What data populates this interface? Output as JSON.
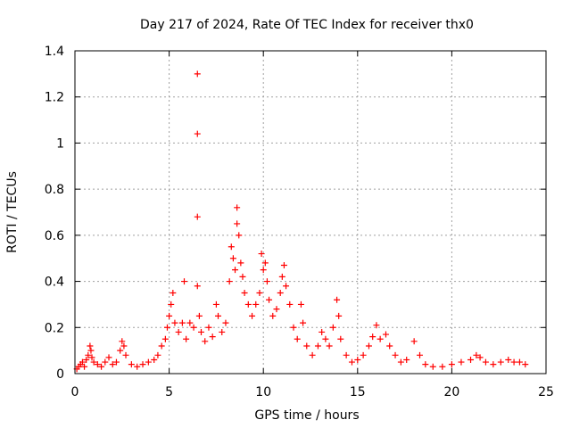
{
  "chart_data": {
    "type": "scatter",
    "title": "Day 217 of 2024, Rate Of TEC Index for receiver thx0",
    "xlabel": "GPS time / hours",
    "ylabel": "ROTI / TECUs",
    "xlim": [
      0,
      25
    ],
    "ylim": [
      0,
      1.4
    ],
    "xticks": [
      0,
      5,
      10,
      15,
      20,
      25
    ],
    "xtick_labels": [
      "0",
      "5",
      "10",
      "15",
      "20",
      "25"
    ],
    "yticks": [
      0,
      0.2,
      0.4,
      0.6,
      0.8,
      1,
      1.2,
      1.4
    ],
    "ytick_labels": [
      "0",
      "0.2",
      "0.4",
      "0.6",
      "0.8",
      "1",
      "1.2",
      "1.4"
    ],
    "grid": true,
    "marker": "plus",
    "color": "#ff0000",
    "series": [
      {
        "name": "ROTI",
        "points": [
          [
            0.1,
            0.02
          ],
          [
            0.2,
            0.03
          ],
          [
            0.3,
            0.04
          ],
          [
            0.4,
            0.05
          ],
          [
            0.5,
            0.03
          ],
          [
            0.6,
            0.06
          ],
          [
            0.7,
            0.08
          ],
          [
            0.8,
            0.12
          ],
          [
            0.85,
            0.1
          ],
          [
            0.9,
            0.07
          ],
          [
            1.0,
            0.05
          ],
          [
            1.2,
            0.04
          ],
          [
            1.4,
            0.03
          ],
          [
            1.6,
            0.05
          ],
          [
            1.8,
            0.07
          ],
          [
            2.0,
            0.04
          ],
          [
            2.2,
            0.05
          ],
          [
            2.4,
            0.1
          ],
          [
            2.5,
            0.14
          ],
          [
            2.6,
            0.12
          ],
          [
            2.7,
            0.08
          ],
          [
            3.0,
            0.04
          ],
          [
            3.3,
            0.03
          ],
          [
            3.6,
            0.04
          ],
          [
            3.9,
            0.05
          ],
          [
            4.2,
            0.06
          ],
          [
            4.4,
            0.08
          ],
          [
            4.6,
            0.12
          ],
          [
            4.8,
            0.15
          ],
          [
            4.9,
            0.2
          ],
          [
            5.0,
            0.25
          ],
          [
            5.1,
            0.3
          ],
          [
            5.2,
            0.35
          ],
          [
            5.3,
            0.22
          ],
          [
            5.5,
            0.18
          ],
          [
            5.7,
            0.22
          ],
          [
            5.8,
            0.4
          ],
          [
            5.9,
            0.15
          ],
          [
            6.1,
            0.22
          ],
          [
            6.3,
            0.2
          ],
          [
            6.5,
            0.68
          ],
          [
            6.5,
            1.04
          ],
          [
            6.5,
            1.3
          ],
          [
            6.5,
            0.38
          ],
          [
            6.6,
            0.25
          ],
          [
            6.7,
            0.18
          ],
          [
            6.9,
            0.14
          ],
          [
            7.1,
            0.2
          ],
          [
            7.3,
            0.16
          ],
          [
            7.5,
            0.3
          ],
          [
            7.6,
            0.25
          ],
          [
            7.8,
            0.18
          ],
          [
            8.0,
            0.22
          ],
          [
            8.2,
            0.4
          ],
          [
            8.3,
            0.55
          ],
          [
            8.4,
            0.5
          ],
          [
            8.5,
            0.45
          ],
          [
            8.6,
            0.72
          ],
          [
            8.6,
            0.65
          ],
          [
            8.7,
            0.6
          ],
          [
            8.8,
            0.48
          ],
          [
            8.9,
            0.42
          ],
          [
            9.0,
            0.35
          ],
          [
            9.2,
            0.3
          ],
          [
            9.4,
            0.25
          ],
          [
            9.6,
            0.3
          ],
          [
            9.8,
            0.35
          ],
          [
            9.9,
            0.52
          ],
          [
            10.0,
            0.45
          ],
          [
            10.1,
            0.48
          ],
          [
            10.2,
            0.4
          ],
          [
            10.3,
            0.32
          ],
          [
            10.5,
            0.25
          ],
          [
            10.7,
            0.28
          ],
          [
            10.9,
            0.35
          ],
          [
            11.0,
            0.42
          ],
          [
            11.1,
            0.47
          ],
          [
            11.2,
            0.38
          ],
          [
            11.4,
            0.3
          ],
          [
            11.6,
            0.2
          ],
          [
            11.8,
            0.15
          ],
          [
            12.0,
            0.3
          ],
          [
            12.1,
            0.22
          ],
          [
            12.3,
            0.12
          ],
          [
            12.6,
            0.08
          ],
          [
            12.9,
            0.12
          ],
          [
            13.1,
            0.18
          ],
          [
            13.3,
            0.15
          ],
          [
            13.5,
            0.12
          ],
          [
            13.7,
            0.2
          ],
          [
            13.9,
            0.32
          ],
          [
            14.0,
            0.25
          ],
          [
            14.1,
            0.15
          ],
          [
            14.4,
            0.08
          ],
          [
            14.7,
            0.05
          ],
          [
            15.0,
            0.06
          ],
          [
            15.3,
            0.08
          ],
          [
            15.6,
            0.12
          ],
          [
            15.8,
            0.16
          ],
          [
            16.0,
            0.21
          ],
          [
            16.2,
            0.15
          ],
          [
            16.5,
            0.17
          ],
          [
            16.7,
            0.12
          ],
          [
            17.0,
            0.08
          ],
          [
            17.3,
            0.05
          ],
          [
            17.6,
            0.06
          ],
          [
            18.0,
            0.14
          ],
          [
            18.3,
            0.08
          ],
          [
            18.6,
            0.04
          ],
          [
            19.0,
            0.03
          ],
          [
            19.5,
            0.03
          ],
          [
            20.0,
            0.04
          ],
          [
            20.5,
            0.05
          ],
          [
            21.0,
            0.06
          ],
          [
            21.3,
            0.08
          ],
          [
            21.5,
            0.07
          ],
          [
            21.8,
            0.05
          ],
          [
            22.2,
            0.04
          ],
          [
            22.6,
            0.05
          ],
          [
            23.0,
            0.06
          ],
          [
            23.3,
            0.05
          ],
          [
            23.6,
            0.05
          ],
          [
            23.9,
            0.04
          ]
        ]
      }
    ]
  }
}
